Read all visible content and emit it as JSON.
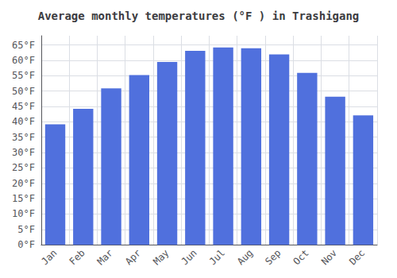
{
  "chart_data": {
    "type": "bar",
    "title": "Average monthly temperatures (°F ) in Trashigang",
    "categories": [
      "Jan",
      "Feb",
      "Mar",
      "Apr",
      "May",
      "Jun",
      "Jul",
      "Aug",
      "Sep",
      "Oct",
      "Nov",
      "Dec"
    ],
    "values": [
      39.2,
      44.2,
      50.9,
      55.2,
      59.5,
      63.1,
      64.2,
      63.9,
      61.9,
      55.9,
      48.2,
      42.1
    ],
    "ylim": [
      0,
      68
    ],
    "yticks": [
      {
        "value": 0,
        "label": "0°F"
      },
      {
        "value": 5,
        "label": "5°F"
      },
      {
        "value": 10,
        "label": "10°F"
      },
      {
        "value": 15,
        "label": "15°F"
      },
      {
        "value": 20,
        "label": "20°F"
      },
      {
        "value": 25,
        "label": "25°F"
      },
      {
        "value": 30,
        "label": "30°F"
      },
      {
        "value": 35,
        "label": "35°F"
      },
      {
        "value": 40,
        "label": "40°F"
      },
      {
        "value": 45,
        "label": "45°F"
      },
      {
        "value": 50,
        "label": "50°F"
      },
      {
        "value": 55,
        "label": "55°F"
      },
      {
        "value": 60,
        "label": "60°F"
      },
      {
        "value": 65,
        "label": "65°F"
      }
    ],
    "grid": true
  }
}
